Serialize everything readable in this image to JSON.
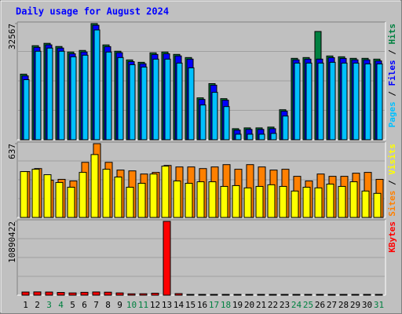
{
  "title": "Daily usage for August 2024",
  "legend_separator": " / ",
  "chart_data": [
    {
      "type": "bar",
      "ylim": [
        0,
        32567
      ],
      "yticks": [
        32567
      ],
      "series": [
        {
          "name": "Hits",
          "color": "#008040",
          "values": [
            18385,
            26359,
            27023,
            26137,
            24587,
            25030,
            32567,
            26580,
            24808,
            22372,
            21707,
            24365,
            24587,
            23922,
            23036,
            11740,
            15727,
            11518,
            3101,
            3323,
            3323,
            3544,
            8417,
            22815,
            23036,
            30346,
            23479,
            23258,
            22815,
            22815,
            22593
          ]
        },
        {
          "name": "Files",
          "color": "#0000ff",
          "values": [
            17900,
            25900,
            26600,
            25700,
            24100,
            24600,
            32100,
            26100,
            24400,
            21900,
            21300,
            23900,
            24100,
            23500,
            22600,
            11300,
            15300,
            11100,
            2700,
            2900,
            2900,
            3100,
            8000,
            22400,
            22600,
            22600,
            23000,
            22800,
            22400,
            22400,
            22100
          ]
        },
        {
          "name": "Pages",
          "color": "#00c0ff",
          "values": [
            16834,
            24808,
            25694,
            24808,
            23258,
            23700,
            30789,
            24587,
            23036,
            21043,
            20378,
            22593,
            22593,
            21486,
            20157,
            9746,
            13290,
            9303,
            1551,
            1551,
            1551,
            1772,
            6645,
            21486,
            21486,
            21486,
            21707,
            21486,
            21486,
            21264,
            21264
          ]
        }
      ]
    },
    {
      "type": "bar",
      "ylim": [
        0,
        637
      ],
      "yticks": [
        637
      ],
      "series": [
        {
          "name": "Visits",
          "color": "#ffff00",
          "values": [
            396,
            416,
            369,
            302,
            261,
            389,
            543,
            416,
            349,
            261,
            295,
            375,
            443,
            315,
            295,
            308,
            308,
            268,
            275,
            255,
            268,
            282,
            268,
            228,
            261,
            255,
            288,
            268,
            308,
            228,
            208
          ]
        },
        {
          "name": "Sites",
          "color": "#ff8000",
          "values": [
            396,
            422,
            322,
            329,
            315,
            476,
            637,
            476,
            409,
            402,
            375,
            389,
            449,
            436,
            436,
            422,
            436,
            456,
            416,
            456,
            436,
            409,
            416,
            355,
            315,
            375,
            355,
            355,
            382,
            389,
            329
          ]
        }
      ]
    },
    {
      "type": "bar",
      "ylim": [
        0,
        10890422
      ],
      "yticks": [
        10890422
      ],
      "categories": [
        "1",
        "2",
        "3",
        "4",
        "5",
        "6",
        "7",
        "8",
        "9",
        "10",
        "11",
        "12",
        "13",
        "14",
        "15",
        "16",
        "17",
        "18",
        "19",
        "20",
        "21",
        "22",
        "23",
        "24",
        "25",
        "26",
        "27",
        "28",
        "29",
        "30",
        "31"
      ],
      "category_colors": [
        "#000000",
        "#000000",
        "#008040",
        "#008040",
        "#000000",
        "#000000",
        "#000000",
        "#000000",
        "#000000",
        "#008040",
        "#008040",
        "#000000",
        "#000000",
        "#000000",
        "#000000",
        "#000000",
        "#008040",
        "#008040",
        "#000000",
        "#000000",
        "#000000",
        "#000000",
        "#000000",
        "#008040",
        "#008040",
        "#000000",
        "#000000",
        "#000000",
        "#000000",
        "#000000",
        "#008040"
      ],
      "series": [
        {
          "name": "KBytes",
          "color": "#ff0000",
          "values": [
            460000,
            480000,
            460000,
            400000,
            330000,
            420000,
            470000,
            440000,
            330000,
            200000,
            210000,
            290000,
            10890422,
            230000,
            110000,
            110000,
            110000,
            110000,
            110000,
            110000,
            110000,
            110000,
            110000,
            110000,
            110000,
            110000,
            110000,
            110000,
            110000,
            110000,
            110000
          ]
        }
      ]
    }
  ]
}
